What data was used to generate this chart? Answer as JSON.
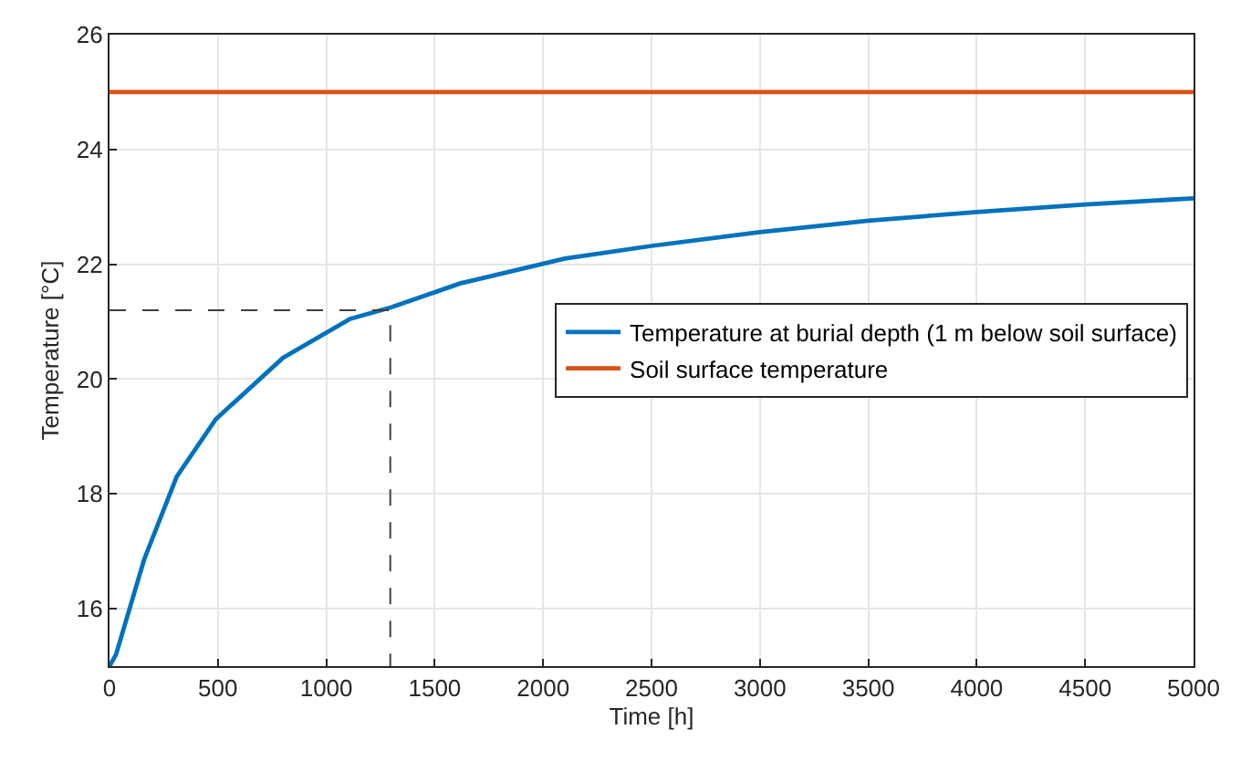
{
  "chart_data": {
    "type": "line",
    "xlabel": "Time [h]",
    "ylabel": "Temperature [°C]",
    "xlim": [
      0,
      5000
    ],
    "xticks": [
      0,
      500,
      1000,
      1500,
      2000,
      2500,
      3000,
      3500,
      4000,
      4500,
      5000
    ],
    "ylim": [
      15,
      26
    ],
    "yticks": [
      16,
      18,
      20,
      22,
      24,
      26
    ],
    "grid": true,
    "legend": "center right",
    "marker": "none",
    "series": [
      {
        "name": "Temperature at burial depth (1 m below soil surface)",
        "color": "#0072bd",
        "x": [
          0,
          30,
          160,
          310,
          490,
          800,
          1110,
          1300,
          1620,
          2100,
          2500,
          3000,
          3500,
          4000,
          4500,
          5000
        ],
        "values": [
          15,
          15.2,
          16.86,
          18.3,
          19.3,
          20.37,
          21.05,
          21.25,
          21.67,
          22.1,
          22.32,
          22.56,
          22.76,
          22.91,
          23.04,
          23.15
        ]
      },
      {
        "name": "Soil surface temperature",
        "color": "#d95319",
        "x": [
          0,
          5000
        ],
        "values": [
          25,
          25
        ]
      },
      {
        "color": "#404040",
        "line_style": "dashed",
        "x": [
          0,
          1295,
          1295
        ],
        "values": [
          21.2,
          21.2,
          15
        ]
      }
    ]
  }
}
